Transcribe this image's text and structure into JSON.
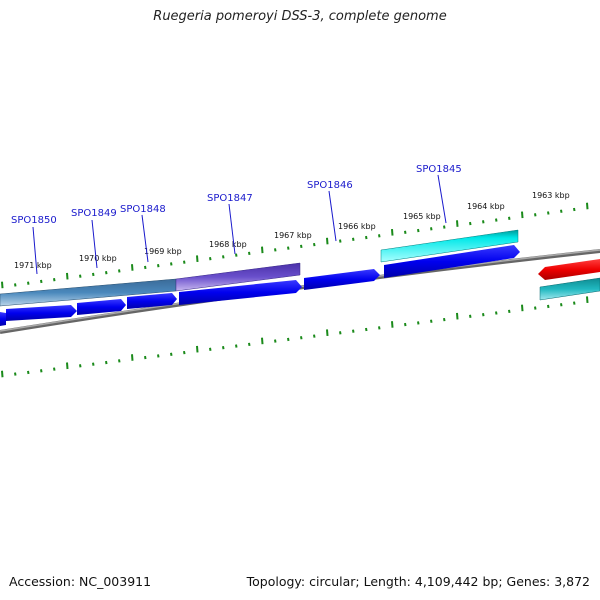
{
  "title": "Ruegeria pomeroyi DSS-3, complete genome",
  "accession": "Accession: NC_003911",
  "topology": "Topology: circular; Length: 4,109,442 bp; Genes: 3,872",
  "kbp_labels": [
    "1971 kbp",
    "1970 kbp",
    "1969 kbp",
    "1968 kbp",
    "1967 kbp",
    "1966 kbp",
    "1965 kbp",
    "1964 kbp",
    "1963 kbp"
  ],
  "gene_labels": [
    "SPO1850",
    "SPO1849",
    "SPO1848",
    "SPO1847",
    "SPO1846",
    "SPO1845"
  ],
  "colors": {
    "backbone": "#808080",
    "cds_forward": "#0a0aee",
    "cds_reverse_red": "#ee0000",
    "teal": "#20b0b8",
    "cyan": "#00eeee",
    "steelblue": "#4a86b8",
    "purple": "#6a50cc",
    "tick_green": "#1a8a1a",
    "label_blue": "#1a1acc"
  },
  "features": [
    {
      "name": "SPO1850",
      "track": "outer",
      "color": "steelblue"
    },
    {
      "name": "SPO1847",
      "track": "outer",
      "color": "purple"
    },
    {
      "name": "SPO1845",
      "track": "outer",
      "color": "cyan"
    },
    {
      "name": "teal-right",
      "track": "inner",
      "color": "teal"
    },
    {
      "name": "red-right",
      "track": "cds",
      "color": "cds_reverse_red"
    }
  ]
}
